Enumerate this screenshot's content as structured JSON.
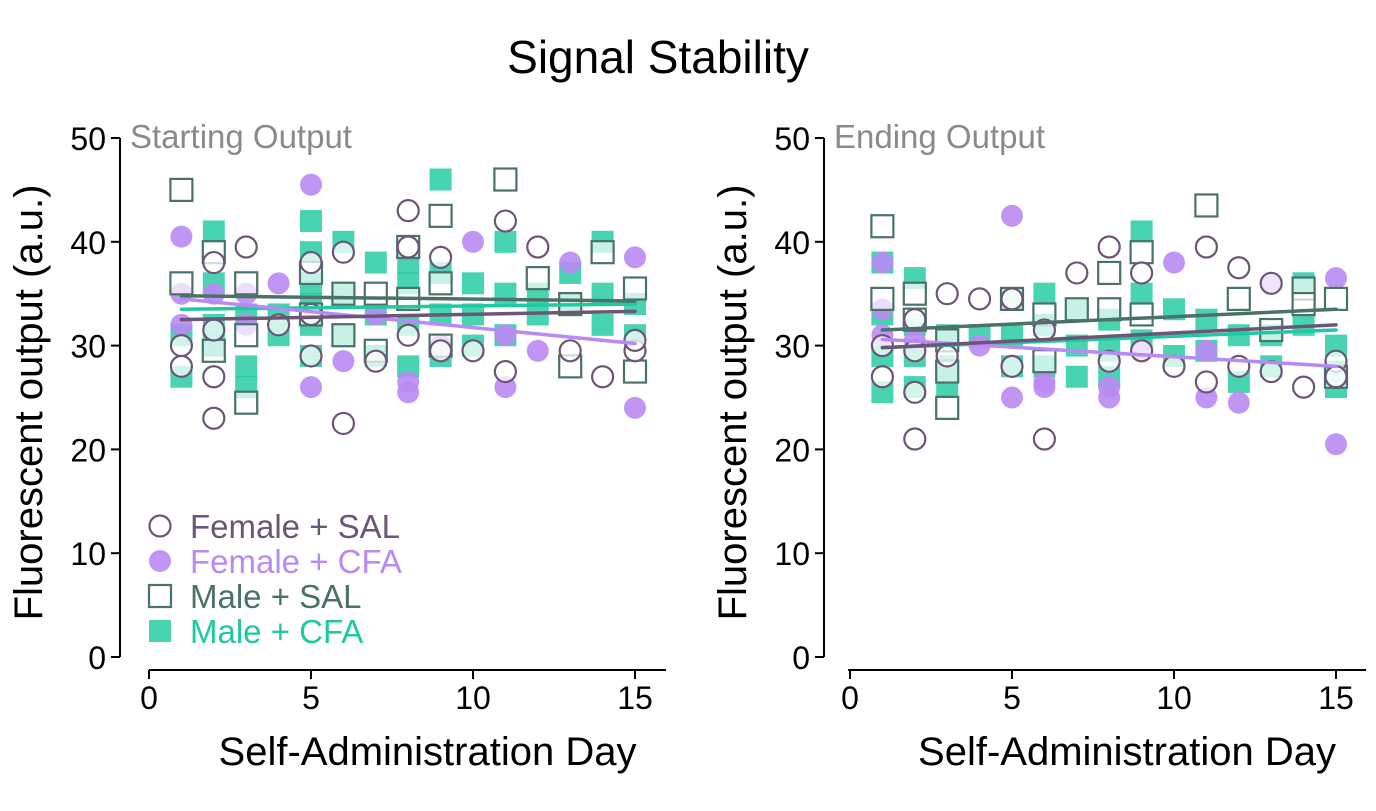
{
  "title": "Signal Stability",
  "colors": {
    "female_sal": "#6b5675",
    "female_cfa": "#b98af3",
    "male_sal": "#4a7268",
    "male_cfa": "#20c9a0",
    "axis": "#000000",
    "panel_label": "#8a8a8a"
  },
  "legend": [
    {
      "label": "Female + SAL",
      "marker": "circle-open",
      "color": "#6b5675"
    },
    {
      "label": "Female + CFA",
      "marker": "circle-filled",
      "color": "#b98af3"
    },
    {
      "label": "Male + SAL",
      "marker": "square-open",
      "color": "#4a7268"
    },
    {
      "label": "Male + CFA",
      "marker": "square-filled",
      "color": "#20c9a0"
    }
  ],
  "chart_data": [
    {
      "type": "scatter",
      "panel_label": "Starting Output",
      "xlabel": "Self-Administration Day",
      "ylabel": "Fluorescent output (a.u.)",
      "xlim": [
        0,
        16
      ],
      "ylim": [
        0,
        50
      ],
      "xticks": [
        0,
        5,
        10,
        15
      ],
      "yticks": [
        0,
        10,
        20,
        30,
        40,
        50
      ],
      "series": [
        {
          "name": "Male + CFA",
          "marker": "square-filled",
          "color": "#20c9a0",
          "x": [
            1,
            1,
            2,
            2,
            2,
            2,
            3,
            3,
            3,
            4,
            4,
            5,
            5,
            5,
            5,
            5,
            5,
            6,
            6,
            6,
            7,
            7,
            7,
            8,
            8,
            8,
            8,
            9,
            9,
            9,
            9,
            10,
            10,
            10,
            11,
            11,
            11,
            12,
            12,
            13,
            13,
            14,
            14,
            14,
            15,
            15
          ],
          "y": [
            27,
            31,
            41,
            36,
            32,
            30,
            33,
            28,
            26,
            33,
            31,
            42,
            39,
            36,
            34,
            32,
            29,
            40,
            35,
            31,
            38,
            33,
            29,
            38,
            36,
            32,
            28,
            46,
            37,
            33,
            29,
            36,
            33,
            30,
            40,
            35,
            31,
            35,
            33,
            37,
            34,
            40,
            35,
            32,
            34,
            31
          ],
          "trend": [
            [
              1,
              33.5
            ],
            [
              15,
              34.0
            ]
          ]
        },
        {
          "name": "Female + CFA",
          "marker": "circle-filled",
          "color": "#b98af3",
          "x": [
            1,
            1,
            1,
            2,
            3,
            3,
            4,
            5,
            5,
            6,
            7,
            8,
            8,
            9,
            10,
            11,
            11,
            12,
            13,
            15,
            15
          ],
          "y": [
            40.5,
            35,
            32,
            35,
            35,
            32,
            36,
            45.5,
            26,
            28.5,
            33,
            25.5,
            26.5,
            30,
            40,
            26,
            31,
            29.5,
            38,
            38.5,
            24
          ],
          "trend": [
            [
              1,
              34.5
            ],
            [
              15,
              30.2
            ]
          ]
        },
        {
          "name": "Male + SAL",
          "marker": "square-open",
          "color": "#4a7268",
          "x": [
            1,
            1,
            2,
            2,
            3,
            3,
            3,
            5,
            5,
            6,
            6,
            7,
            7,
            8,
            8,
            9,
            9,
            9,
            11,
            12,
            13,
            13,
            14,
            15,
            15
          ],
          "y": [
            45,
            36,
            39,
            29.5,
            36,
            31,
            24.5,
            37,
            33,
            35,
            31,
            35,
            29.5,
            39.5,
            34.5,
            42.5,
            36,
            30,
            46,
            36.5,
            34,
            28,
            39,
            35.5,
            27.5
          ],
          "trend": [
            [
              1,
              34.8
            ],
            [
              15,
              34.3
            ]
          ]
        },
        {
          "name": "Female + SAL",
          "marker": "circle-open",
          "color": "#6b5675",
          "x": [
            1,
            1,
            2,
            2,
            2,
            2,
            3,
            4,
            5,
            5,
            5,
            6,
            6,
            7,
            8,
            8,
            8,
            9,
            9,
            10,
            11,
            11,
            12,
            13,
            14,
            15,
            15
          ],
          "y": [
            30,
            28,
            38,
            31.5,
            27,
            23,
            39.5,
            32,
            38,
            33,
            29,
            39,
            22.5,
            28.5,
            43,
            31,
            39.5,
            38.5,
            29.5,
            29.5,
            42,
            27.5,
            39.5,
            29.5,
            27,
            29.5,
            30.5
          ],
          "trend": [
            [
              1,
              32.5
            ],
            [
              15,
              33.3
            ]
          ]
        }
      ]
    },
    {
      "type": "scatter",
      "panel_label": "Ending Output",
      "xlabel": "Self-Administration Day",
      "ylabel": "Fluorescent output (a.u.)",
      "xlim": [
        0,
        16
      ],
      "ylim": [
        0,
        50
      ],
      "xticks": [
        0,
        5,
        10,
        15
      ],
      "yticks": [
        0,
        10,
        20,
        30,
        40,
        50
      ],
      "series": [
        {
          "name": "Male + CFA",
          "marker": "square-filled",
          "color": "#20c9a0",
          "x": [
            1,
            1,
            1,
            1,
            2,
            2,
            2,
            2,
            3,
            3,
            3,
            4,
            5,
            5,
            5,
            6,
            6,
            6,
            7,
            7,
            7,
            8,
            8,
            8,
            9,
            9,
            9,
            10,
            10,
            11,
            11,
            12,
            12,
            13,
            13,
            14,
            14,
            15,
            15,
            15
          ],
          "y": [
            38,
            33,
            29,
            25.5,
            36.5,
            32,
            29,
            26,
            31,
            28,
            26,
            31,
            34.5,
            31,
            28,
            35,
            32,
            28,
            33.5,
            30,
            27,
            32.5,
            29.5,
            27,
            41,
            35,
            30.5,
            33.5,
            29,
            32.5,
            29.5,
            31,
            26.5,
            31,
            28,
            36,
            32,
            30,
            27.5,
            26
          ],
          "trend": [
            [
              1,
              29.8
            ],
            [
              15,
              31.5
            ]
          ]
        },
        {
          "name": "Female + CFA",
          "marker": "circle-filled",
          "color": "#b98af3",
          "x": [
            1,
            1,
            1,
            2,
            4,
            5,
            5,
            6,
            6,
            8,
            8,
            9,
            10,
            11,
            11,
            12,
            13,
            15,
            15
          ],
          "y": [
            38,
            33.5,
            31,
            30.5,
            30,
            42.5,
            25,
            26.5,
            26,
            26,
            25,
            29.5,
            38,
            25,
            29.5,
            24.5,
            36,
            36.5,
            20.5
          ],
          "trend": [
            [
              1,
              30.6
            ],
            [
              15,
              28.0
            ]
          ]
        },
        {
          "name": "Male + SAL",
          "marker": "square-open",
          "color": "#4a7268",
          "x": [
            1,
            1,
            2,
            2,
            3,
            3,
            3,
            5,
            6,
            6,
            7,
            8,
            8,
            9,
            9,
            11,
            12,
            13,
            14,
            14,
            15,
            15
          ],
          "y": [
            41.5,
            34.5,
            35,
            32.5,
            30.5,
            27.5,
            24,
            34.5,
            33,
            28.5,
            33.5,
            37,
            33.5,
            39,
            33,
            43.5,
            34.5,
            31.5,
            35.5,
            34,
            34.5,
            27
          ],
          "trend": [
            [
              1,
              31.5
            ],
            [
              15,
              33.5
            ]
          ]
        },
        {
          "name": "Female + SAL",
          "marker": "circle-open",
          "color": "#6b5675",
          "x": [
            1,
            1,
            2,
            2,
            2,
            2,
            3,
            3,
            4,
            5,
            5,
            6,
            6,
            7,
            8,
            8,
            9,
            9,
            10,
            11,
            11,
            12,
            12,
            13,
            13,
            14,
            15,
            15
          ],
          "y": [
            30,
            27,
            32.5,
            29.5,
            25.5,
            21,
            35,
            29,
            34.5,
            34.5,
            28,
            31.5,
            21,
            37,
            39.5,
            28.5,
            37,
            29.5,
            28,
            39.5,
            26.5,
            37.5,
            28,
            36,
            27.5,
            26,
            28.5,
            27
          ],
          "trend": [
            [
              1,
              29.8
            ],
            [
              15,
              32.0
            ]
          ]
        }
      ]
    }
  ]
}
